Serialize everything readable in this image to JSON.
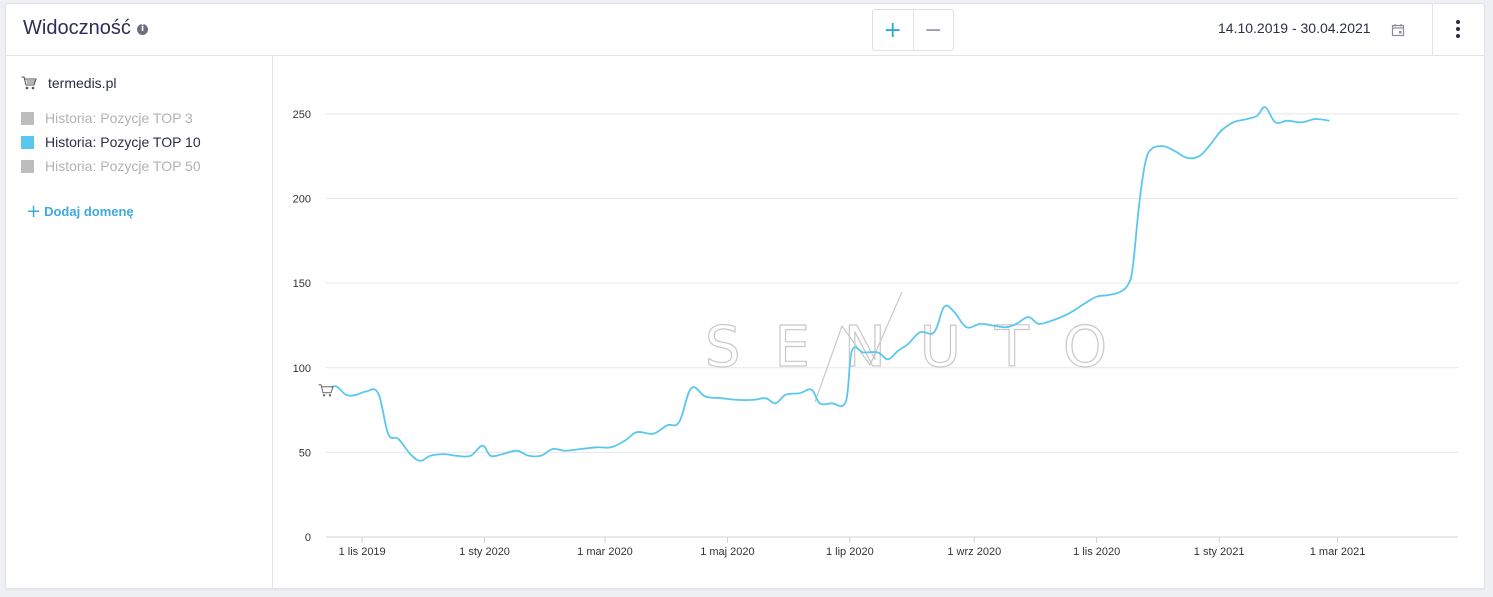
{
  "header": {
    "title": "Widoczność",
    "zoom_in_label": "+",
    "zoom_out_label": "−",
    "date_range": "14.10.2019 - 30.04.2021",
    "icons": [
      "info-icon",
      "calendar-icon",
      "kebab-menu-icon"
    ]
  },
  "sidebar": {
    "domain": "termedis.pl",
    "domain_icon": "shopping-cart-icon",
    "legend": [
      {
        "label": "Historia: Pozycje TOP 3",
        "color": "#bdbdbd",
        "active": false
      },
      {
        "label": "Historia: Pozycje TOP 10",
        "color": "#5ac8ee",
        "active": true
      },
      {
        "label": "Historia: Pozycje TOP 50",
        "color": "#bdbdbd",
        "active": false
      }
    ],
    "add_domain_label": "Dodaj domenę"
  },
  "watermark": "SENUTO",
  "chart_data": {
    "type": "line",
    "title": "",
    "xlabel": "",
    "ylabel": "",
    "ylim": [
      0,
      260
    ],
    "yticks": [
      0,
      50,
      100,
      150,
      200,
      250
    ],
    "xlim": [
      "2019-10-14",
      "2021-04-30"
    ],
    "xticks": [
      {
        "date": "2019-11-01",
        "label": "1 lis 2019"
      },
      {
        "date": "2020-01-01",
        "label": "1 sty 2020"
      },
      {
        "date": "2020-03-01",
        "label": "1 mar 2020"
      },
      {
        "date": "2020-05-01",
        "label": "1 maj 2020"
      },
      {
        "date": "2020-07-01",
        "label": "1 lip 2020"
      },
      {
        "date": "2020-09-01",
        "label": "1 wrz 2020"
      },
      {
        "date": "2020-11-01",
        "label": "1 lis 2020"
      },
      {
        "date": "2021-01-01",
        "label": "1 sty 2021"
      },
      {
        "date": "2021-03-01",
        "label": "1 mar 2021"
      }
    ],
    "grid": true,
    "series": [
      {
        "name": "Historia: Pozycje TOP 10",
        "color": "#5ac8ee",
        "points": [
          [
            "2019-10-14",
            87
          ],
          [
            "2019-10-19",
            89
          ],
          [
            "2019-10-24",
            84
          ],
          [
            "2019-10-29",
            84
          ],
          [
            "2019-11-03",
            86
          ],
          [
            "2019-11-09",
            85
          ],
          [
            "2019-11-14",
            61
          ],
          [
            "2019-11-19",
            58
          ],
          [
            "2019-11-25",
            49
          ],
          [
            "2019-11-30",
            45
          ],
          [
            "2019-12-05",
            48
          ],
          [
            "2019-12-12",
            49
          ],
          [
            "2019-12-18",
            48
          ],
          [
            "2019-12-25",
            48
          ],
          [
            "2019-12-31",
            54
          ],
          [
            "2020-01-04",
            48
          ],
          [
            "2020-01-10",
            49
          ],
          [
            "2020-01-17",
            51
          ],
          [
            "2020-01-23",
            48
          ],
          [
            "2020-01-29",
            48
          ],
          [
            "2020-02-04",
            52
          ],
          [
            "2020-02-10",
            51
          ],
          [
            "2020-02-18",
            52
          ],
          [
            "2020-02-26",
            53
          ],
          [
            "2020-03-04",
            53
          ],
          [
            "2020-03-11",
            57
          ],
          [
            "2020-03-17",
            62
          ],
          [
            "2020-03-25",
            61
          ],
          [
            "2020-04-01",
            66
          ],
          [
            "2020-04-07",
            68
          ],
          [
            "2020-04-13",
            88
          ],
          [
            "2020-04-20",
            83
          ],
          [
            "2020-04-28",
            82
          ],
          [
            "2020-05-06",
            81
          ],
          [
            "2020-05-14",
            81
          ],
          [
            "2020-05-20",
            82
          ],
          [
            "2020-05-25",
            79
          ],
          [
            "2020-05-30",
            84
          ],
          [
            "2020-06-06",
            85
          ],
          [
            "2020-06-12",
            87
          ],
          [
            "2020-06-16",
            79
          ],
          [
            "2020-06-22",
            79
          ],
          [
            "2020-06-29",
            80
          ],
          [
            "2020-07-02",
            110
          ],
          [
            "2020-07-08",
            109
          ],
          [
            "2020-07-15",
            109
          ],
          [
            "2020-07-20",
            105
          ],
          [
            "2020-07-25",
            110
          ],
          [
            "2020-07-30",
            114
          ],
          [
            "2020-08-05",
            121
          ],
          [
            "2020-08-12",
            121
          ],
          [
            "2020-08-17",
            136
          ],
          [
            "2020-08-22",
            133
          ],
          [
            "2020-08-28",
            124
          ],
          [
            "2020-09-04",
            126
          ],
          [
            "2020-09-10",
            125
          ],
          [
            "2020-09-17",
            124
          ],
          [
            "2020-09-22",
            126
          ],
          [
            "2020-09-28",
            130
          ],
          [
            "2020-10-03",
            126
          ],
          [
            "2020-10-10",
            128
          ],
          [
            "2020-10-18",
            132
          ],
          [
            "2020-10-26",
            138
          ],
          [
            "2020-11-01",
            142
          ],
          [
            "2020-11-07",
            143
          ],
          [
            "2020-11-13",
            145
          ],
          [
            "2020-11-17",
            150
          ],
          [
            "2020-11-19",
            160
          ],
          [
            "2020-11-22",
            195
          ],
          [
            "2020-11-25",
            220
          ],
          [
            "2020-11-28",
            229
          ],
          [
            "2020-12-04",
            231
          ],
          [
            "2020-12-10",
            228
          ],
          [
            "2020-12-16",
            224
          ],
          [
            "2020-12-22",
            225
          ],
          [
            "2020-12-27",
            231
          ],
          [
            "2021-01-02",
            240
          ],
          [
            "2021-01-08",
            245
          ],
          [
            "2021-01-15",
            247
          ],
          [
            "2021-01-20",
            249
          ],
          [
            "2021-01-24",
            254
          ],
          [
            "2021-01-29",
            245
          ],
          [
            "2021-02-04",
            246
          ],
          [
            "2021-02-11",
            245
          ],
          [
            "2021-02-18",
            247
          ],
          [
            "2021-02-25",
            246
          ]
        ]
      }
    ]
  }
}
